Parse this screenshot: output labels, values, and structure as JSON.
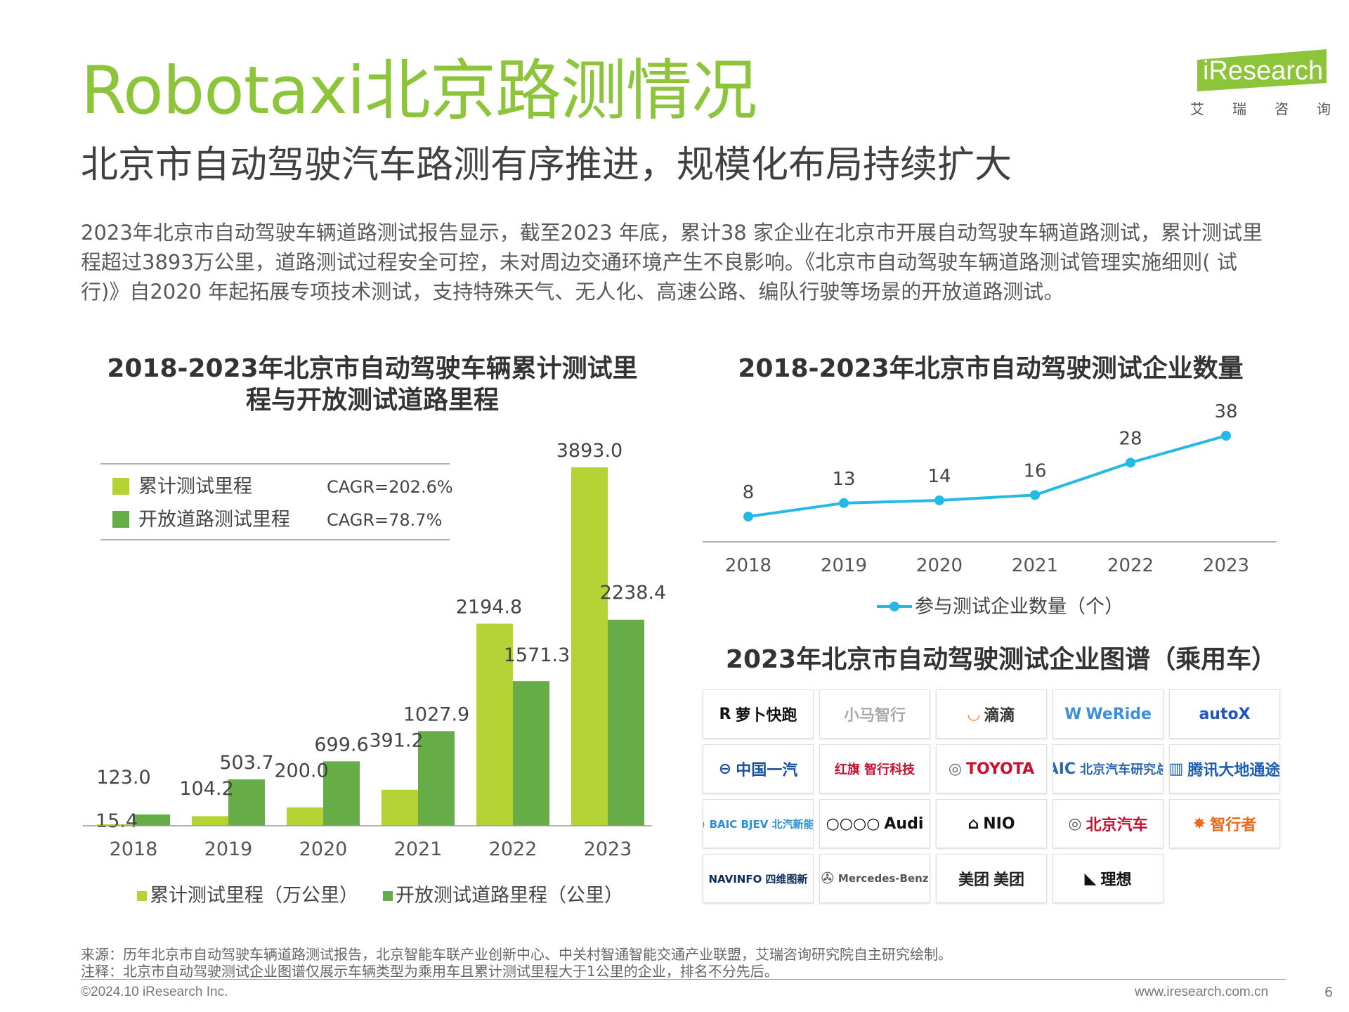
{
  "header": {
    "title": "Robotaxi北京路测情况",
    "subtitle": "北京市自动驾驶汽车路测有序推进，规模化布局持续扩大",
    "brand_logo_text": "iResearch",
    "brand_cn": [
      "艾",
      "瑞",
      "咨",
      "询"
    ]
  },
  "intro": "2023年北京市自动驾驶车辆道路测试报告显示，截至2023 年底，累计38 家企业在北京市开展自动驾驶车辆道路测试，累计测试里程超过3893万公里，道路测试过程安全可控，未对周边交通环境产生不良影响。《北京市自动驾驶车辆道路测试管理实施细则( 试行)》自2020 年起拓展专项技术测试，支持特殊天气、无人化、高速公路、编队行驶等场景的开放道路测试。",
  "colors": {
    "accent_green": "#8cc43a",
    "light_green": "#b5d334",
    "dark_green": "#66ad47",
    "line_blue": "#25b9e6"
  },
  "chart_data": [
    {
      "type": "bar",
      "title": "2018-2023年北京市自动驾驶车辆累计测试里程与开放测试道路里程",
      "title_lines": [
        "2018-2023年北京市自动驾驶车辆累计测试里",
        "程与开放测试道路里程"
      ],
      "categories": [
        "2018",
        "2019",
        "2020",
        "2021",
        "2022",
        "2023"
      ],
      "series": [
        {
          "name": "累计测试里程（万公里）",
          "legend_short": "累计测试里程",
          "cagr": "CAGR=202.6%",
          "color": "#b5d334",
          "values": [
            15.4,
            104.2,
            200.0,
            391.2,
            2194.8,
            3893.0
          ],
          "labels": [
            "15.4",
            "104.2",
            "200.0",
            "391.2",
            "2194.8",
            "3893.0"
          ]
        },
        {
          "name": "开放测试道路里程（公里）",
          "legend_short": "开放道路测试里程",
          "cagr": "CAGR=78.7%",
          "color": "#66ad47",
          "values": [
            123.0,
            503.7,
            699.6,
            1027.9,
            1571.3,
            2238.4
          ],
          "labels": [
            "123.0",
            "503.7",
            "699.6",
            "1027.9",
            "1571.3",
            "2238.4"
          ]
        }
      ],
      "ylim": [
        0,
        3893.0
      ],
      "grid": false,
      "legend": [
        "top-left",
        "bottom"
      ]
    },
    {
      "type": "line",
      "title": "2018-2023年北京市自动驾驶测试企业数量",
      "categories": [
        "2018",
        "2019",
        "2020",
        "2021",
        "2022",
        "2023"
      ],
      "series": [
        {
          "name": "参与测试企业数量（个）",
          "color": "#25b9e6",
          "values": [
            8,
            13,
            14,
            16,
            28,
            38
          ]
        }
      ],
      "grid": false,
      "legend": "bottom"
    }
  ],
  "logo_grid": {
    "title": "2023年北京市自动驾驶测试企业图谱（乘用车）",
    "logos": [
      {
        "name": "萝卜快跑",
        "icon": "R",
        "color": "#111111",
        "icon_color": "#111111"
      },
      {
        "name": "小马智行",
        "icon": "",
        "color": "#aaaaaa",
        "icon_color": "#aaaaaa"
      },
      {
        "name": "滴滴",
        "icon": "◡",
        "color": "#333333",
        "icon_color": "#ff7a2e"
      },
      {
        "name": "WeRide",
        "icon": "W",
        "color": "#3d8fd9",
        "icon_color": "#3d8fd9"
      },
      {
        "name": "autoX",
        "icon": "",
        "color": "#2253c4",
        "icon_color": "#2253c4"
      },
      {
        "name": "中国一汽",
        "icon": "⊖",
        "color": "#1d4fa0",
        "icon_color": "#1d4fa0"
      },
      {
        "name": "红旗 智行科技",
        "icon": "",
        "color": "#c8102e",
        "icon_color": "#c8102e"
      },
      {
        "name": "TOYOTA",
        "icon": "◎",
        "color": "#c8102e",
        "icon_color": "#666666"
      },
      {
        "name": "北京汽车研究总院",
        "icon": "BAIC",
        "color": "#2e66b1",
        "icon_color": "#2e66b1"
      },
      {
        "name": "腾讯大地通途",
        "icon": "▥",
        "color": "#1e5fb4",
        "icon_color": "#1e5fb4"
      },
      {
        "name": "BAIC BJEV 北汽新能源",
        "icon": "◎",
        "color": "#2d8fd4",
        "icon_color": "#2d8fd4"
      },
      {
        "name": "Audi",
        "icon": "○○○○",
        "color": "#111111",
        "icon_color": "#111111"
      },
      {
        "name": "NIO",
        "icon": "⌂",
        "color": "#111111",
        "icon_color": "#111111"
      },
      {
        "name": "北京汽车",
        "icon": "◎",
        "color": "#c8102e",
        "icon_color": "#555555"
      },
      {
        "name": "智行者",
        "icon": "✸",
        "color": "#e86a1e",
        "icon_color": "#e86a1e"
      },
      {
        "name": "NAVINFO 四维图新",
        "icon": "",
        "color": "#0d2a5a",
        "icon_color": "#0d2a5a"
      },
      {
        "name": "Mercedes-Benz",
        "icon": "✇",
        "color": "#555555",
        "icon_color": "#555555"
      },
      {
        "name": "美团",
        "icon": "美团",
        "color": "#222222",
        "icon_color": "#222222"
      },
      {
        "name": "理想",
        "icon": "◣",
        "color": "#111111",
        "icon_color": "#111111"
      }
    ]
  },
  "footer": {
    "source": "来源：历年北京市自动驾驶车辆道路测试报告，北京智能车联产业创新中心、中关村智通智能交通产业联盟，艾瑞咨询研究院自主研究绘制。",
    "note": "注释：北京市自动驾驶测试企业图谱仅展示车辆类型为乘用车且累计测试里程大于1公里的企业，排名不分先后。",
    "copyright": "©2024.10 iResearch Inc.",
    "website": "www.iresearch.com.cn",
    "page": "6"
  }
}
